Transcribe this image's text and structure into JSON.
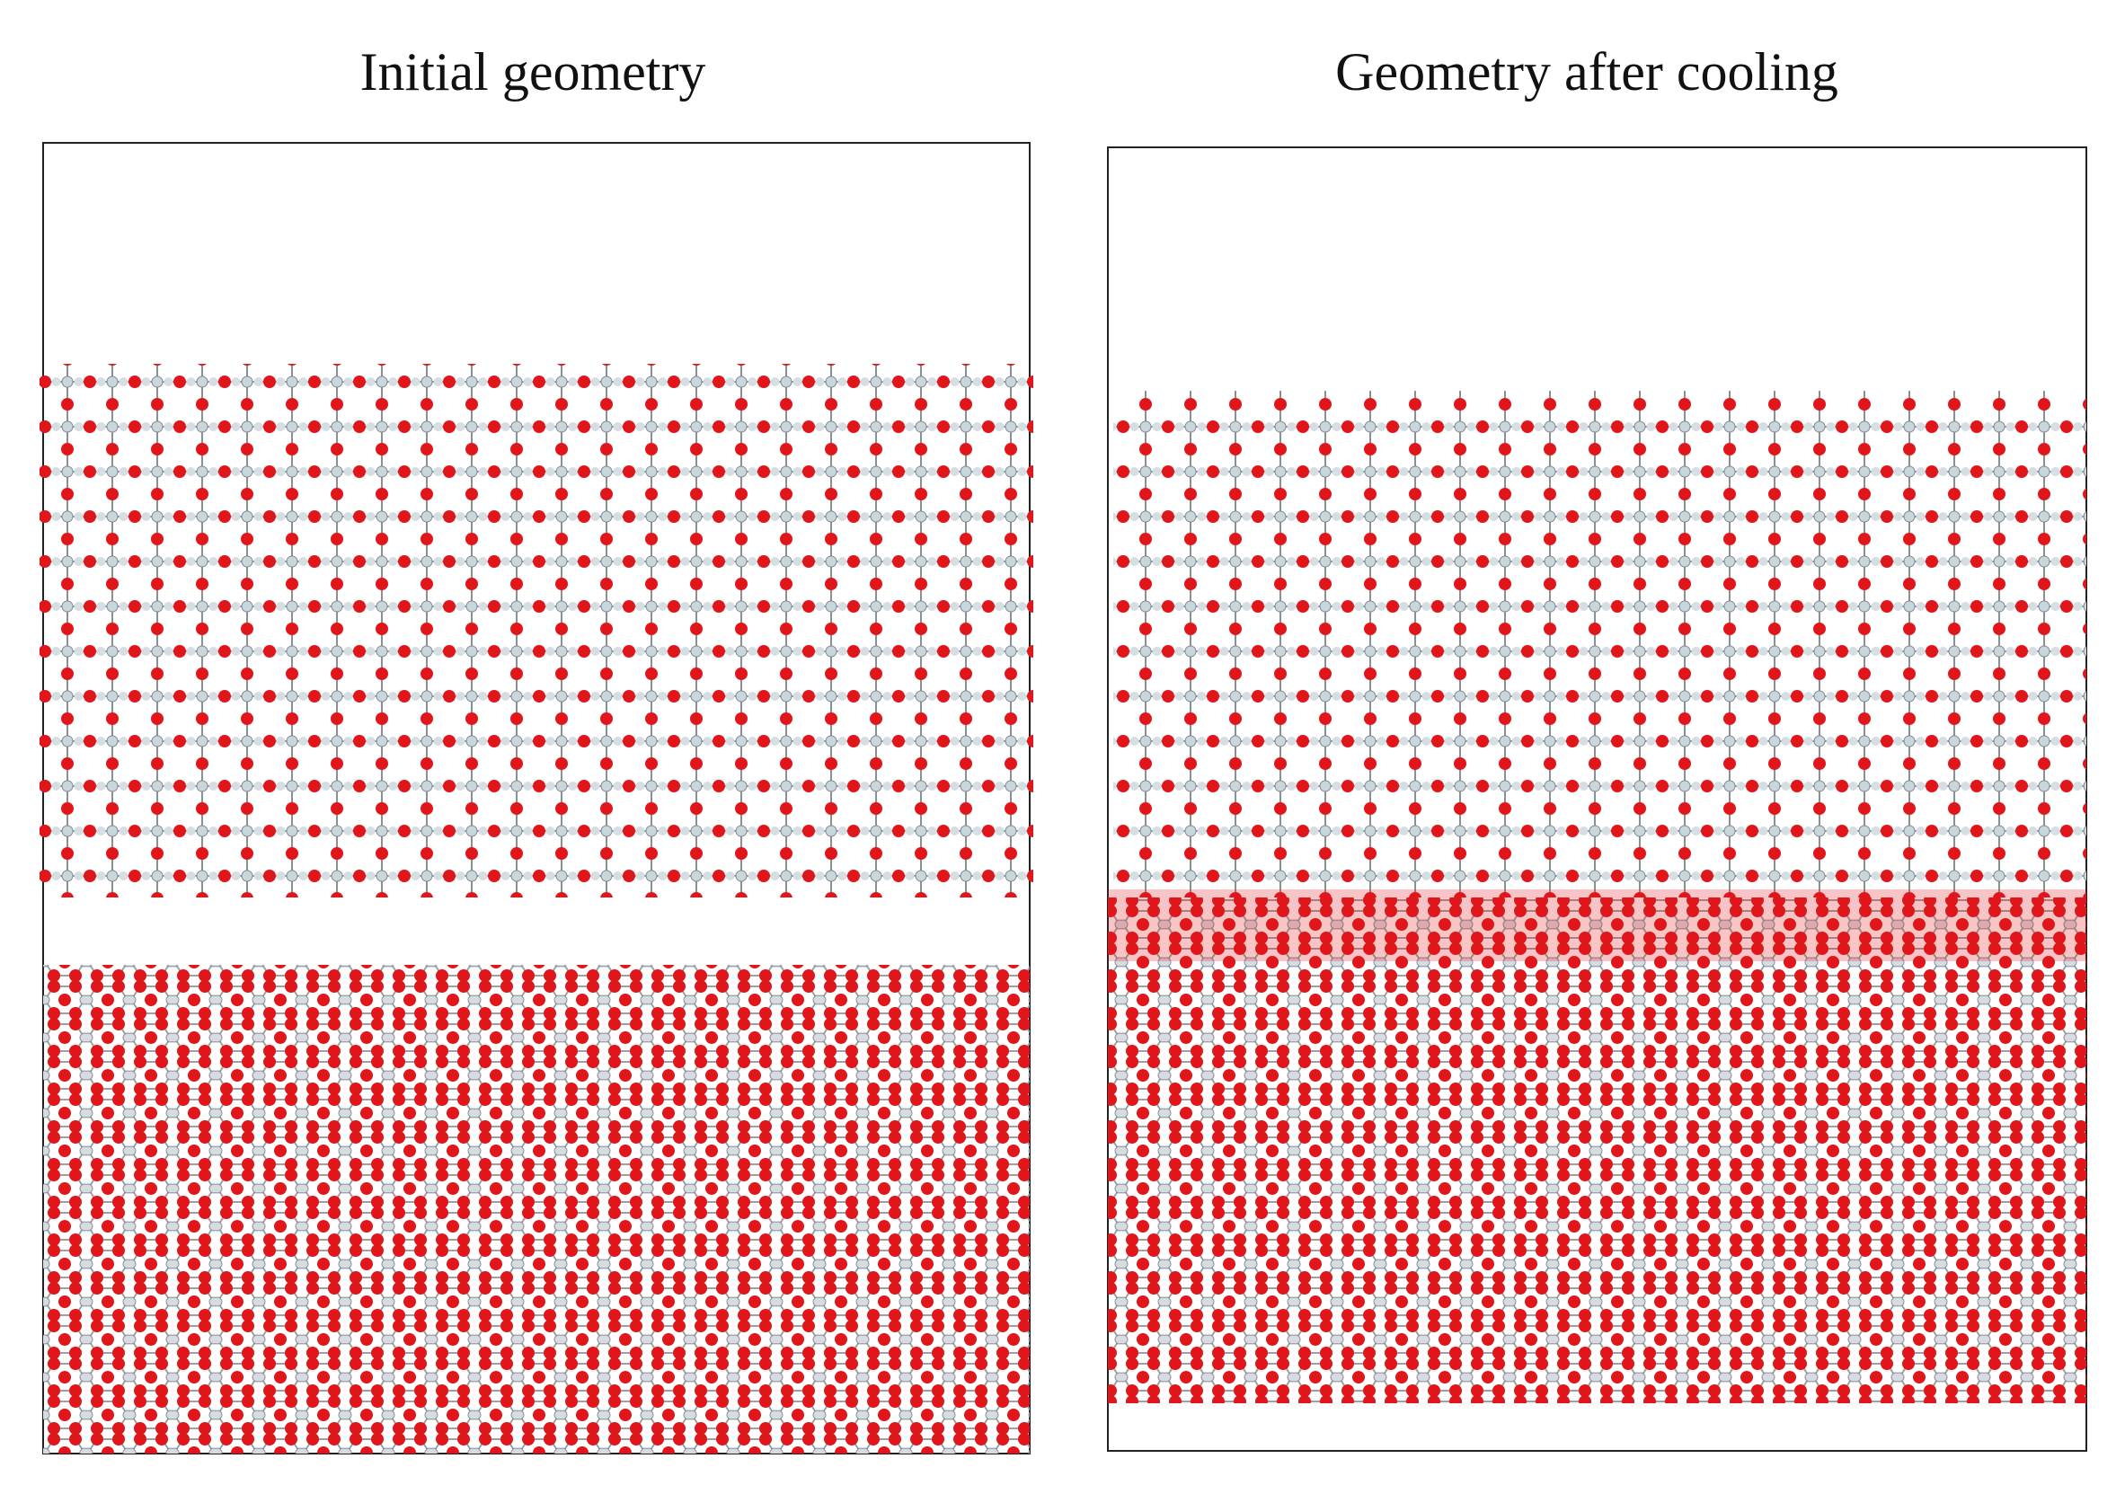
{
  "panels": [
    {
      "title": "Initial geometry"
    },
    {
      "title": "Geometry after cooling"
    }
  ]
}
